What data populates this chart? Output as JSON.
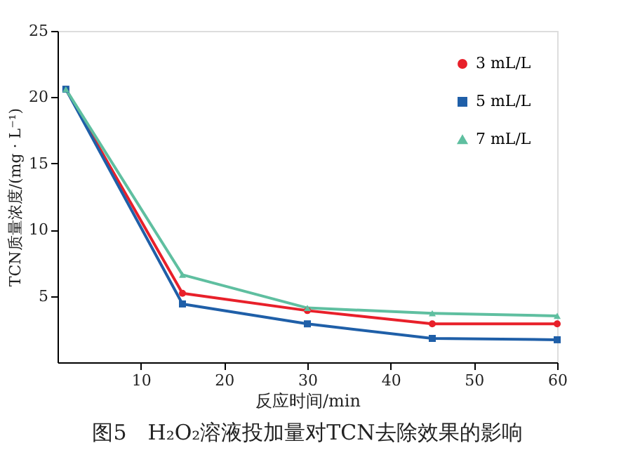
{
  "chart_data": {
    "type": "line",
    "title": "图5　H₂O₂溶液投加量对TCN去除效果的影响",
    "xlabel": "反应时间/min",
    "ylabel": "TCN质量浓度/(mg · L⁻¹)",
    "x": [
      1,
      15,
      30,
      45,
      60
    ],
    "series": [
      {
        "name": "3 mL/L",
        "color": "#e8202a",
        "marker": "circle",
        "values": [
          20.6,
          5.2,
          3.9,
          2.9,
          2.9
        ]
      },
      {
        "name": "5 mL/L",
        "color": "#1f5fa8",
        "marker": "square",
        "values": [
          20.6,
          4.4,
          2.9,
          1.8,
          1.7
        ]
      },
      {
        "name": "7 mL/L",
        "color": "#5fbfa0",
        "marker": "triangle",
        "values": [
          20.6,
          6.6,
          4.1,
          3.7,
          3.5
        ]
      }
    ],
    "xlim": [
      0,
      60
    ],
    "xticks": [
      10,
      20,
      30,
      40,
      50,
      60
    ],
    "ylim": [
      0,
      25
    ],
    "yticks": [
      5,
      10,
      15,
      20,
      25
    ],
    "grid": false,
    "legend": "top right",
    "line_style": "solid"
  }
}
